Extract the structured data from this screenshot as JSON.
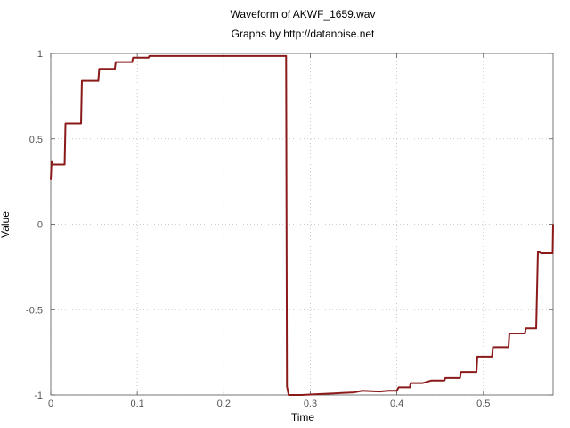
{
  "chart_data": {
    "type": "line",
    "title": "Waveform of AKWF_1659.wav",
    "subtitle": "Graphs by http://datanoise.net",
    "xlabel": "Time",
    "ylabel": "Value",
    "xlim": [
      0,
      0.5805
    ],
    "ylim": [
      -1,
      1
    ],
    "xticks": [
      0,
      0.1,
      0.2,
      0.3,
      0.4,
      0.5
    ],
    "xtick_labels": [
      "0",
      "0.1",
      "0.2",
      "0.3",
      "0.4",
      "0.5"
    ],
    "yticks": [
      1,
      0.5,
      0,
      -0.5,
      -1
    ],
    "ytick_labels": [
      "1",
      "0.5",
      "0",
      "-0.5",
      "-1"
    ],
    "grid": true,
    "line_color": "#8b1a1a",
    "series": [
      {
        "x": [
          0,
          0.001,
          0.002,
          0.016,
          0.017,
          0.035,
          0.036,
          0.055,
          0.056,
          0.074,
          0.075,
          0.094,
          0.095,
          0.113,
          0.114,
          0.15,
          0.2,
          0.25,
          0.272,
          0.273,
          0.275,
          0.29,
          0.31,
          0.33,
          0.35,
          0.36,
          0.38,
          0.39,
          0.4,
          0.402,
          0.415,
          0.416,
          0.43,
          0.44,
          0.455,
          0.456,
          0.473,
          0.474,
          0.492,
          0.493,
          0.51,
          0.511,
          0.529,
          0.53,
          0.548,
          0.549,
          0.561,
          0.563,
          0.567,
          0.568,
          0.58,
          0.5805
        ],
        "y": [
          0.26,
          0.37,
          0.35,
          0.35,
          0.59,
          0.59,
          0.84,
          0.84,
          0.91,
          0.91,
          0.95,
          0.95,
          0.975,
          0.975,
          0.985,
          0.985,
          0.985,
          0.985,
          0.985,
          -0.95,
          -1.0,
          -1.0,
          -0.995,
          -0.99,
          -0.985,
          -0.975,
          -0.98,
          -0.975,
          -0.975,
          -0.955,
          -0.955,
          -0.93,
          -0.93,
          -0.915,
          -0.915,
          -0.9,
          -0.9,
          -0.865,
          -0.865,
          -0.775,
          -0.775,
          -0.72,
          -0.72,
          -0.64,
          -0.64,
          -0.61,
          -0.61,
          -0.16,
          -0.17,
          -0.17,
          -0.17,
          -0.0
        ]
      }
    ]
  }
}
